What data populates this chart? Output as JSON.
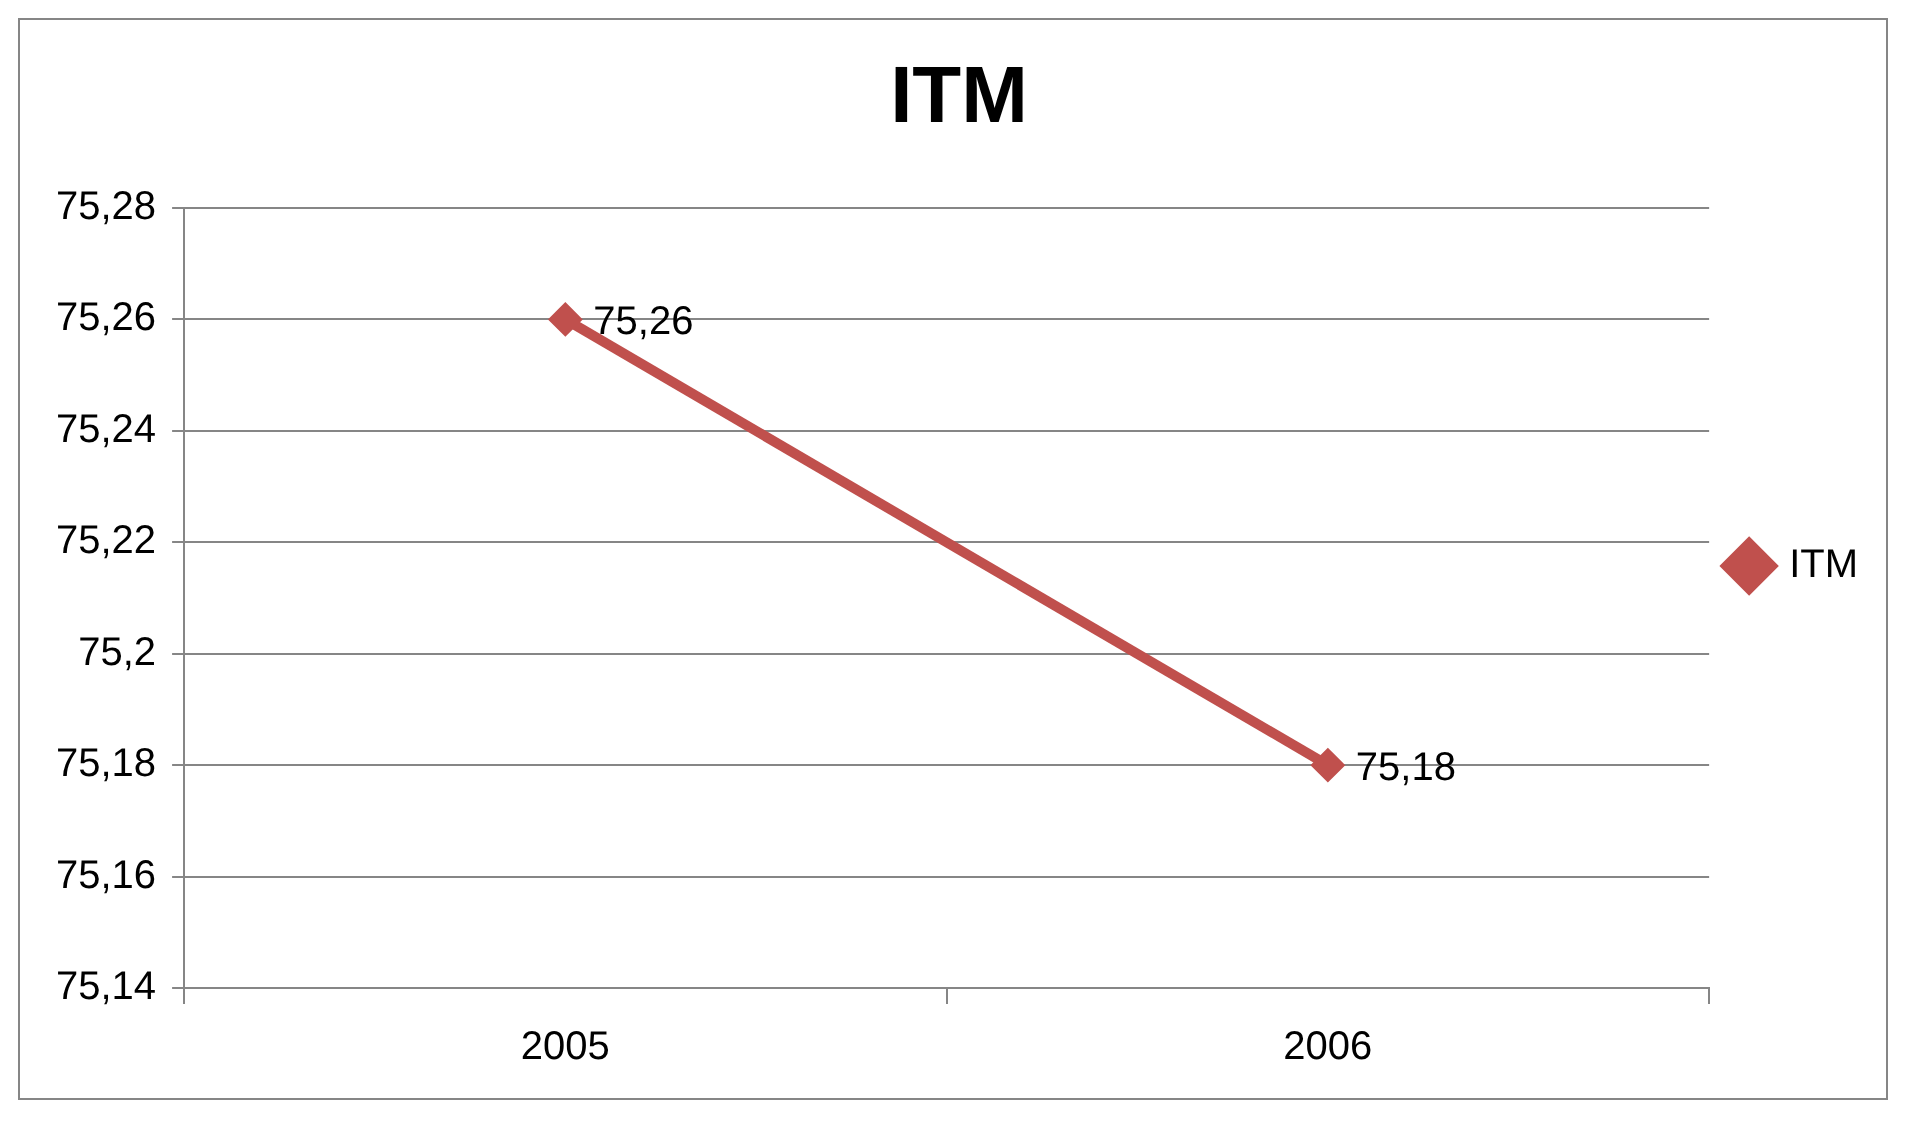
{
  "chart_data": {
    "type": "line",
    "title": "ITM",
    "categories": [
      "2005",
      "2006"
    ],
    "series": [
      {
        "name": "ITM",
        "color": "#c0504d",
        "values": [
          75.26,
          75.18
        ],
        "value_labels": [
          "75,26",
          "75,18"
        ]
      }
    ],
    "ylim": [
      75.14,
      75.28
    ],
    "yticks": [
      {
        "value": 75.14,
        "label": "75,14"
      },
      {
        "value": 75.16,
        "label": "75,16"
      },
      {
        "value": 75.18,
        "label": "75,18"
      },
      {
        "value": 75.2,
        "label": "75,2"
      },
      {
        "value": 75.22,
        "label": "75,22"
      },
      {
        "value": 75.24,
        "label": "75,24"
      },
      {
        "value": 75.26,
        "label": "75,26"
      },
      {
        "value": 75.28,
        "label": "75,28"
      }
    ],
    "grid": "y",
    "legend": "right",
    "marker": "diamond",
    "line_style": "solid"
  }
}
